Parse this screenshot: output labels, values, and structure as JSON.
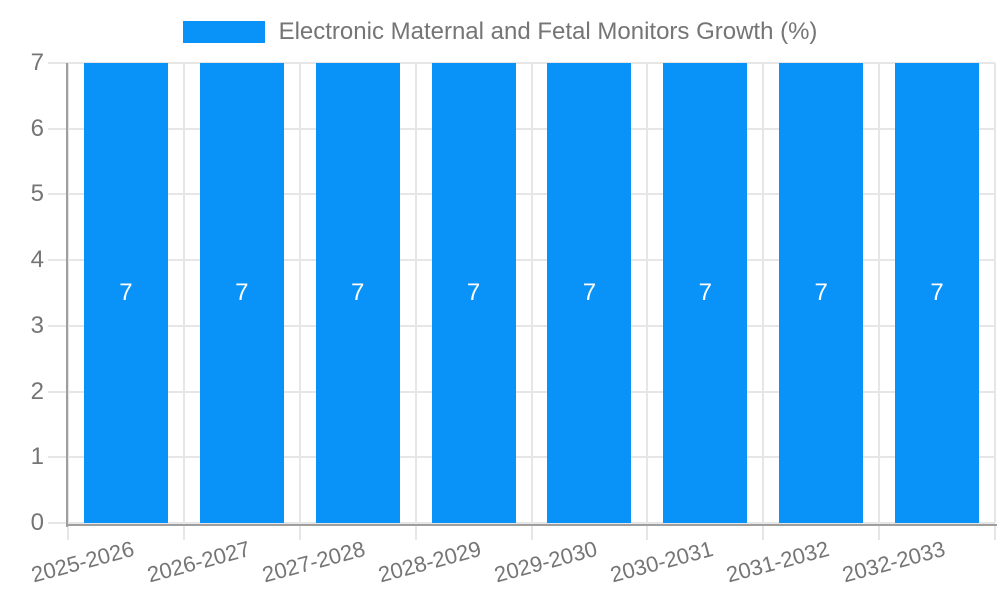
{
  "chart_data": {
    "type": "bar",
    "title": "Electronic Maternal and Fetal Monitors Growth (%)",
    "categories": [
      "2025-2026",
      "2026-2027",
      "2027-2028",
      "2028-2029",
      "2029-2030",
      "2030-2031",
      "2031-2032",
      "2032-2033"
    ],
    "values": [
      7,
      7,
      7,
      7,
      7,
      7,
      7,
      7
    ],
    "bar_labels": [
      "7",
      "7",
      "7",
      "7",
      "7",
      "7",
      "7",
      "7"
    ],
    "xlabel": "",
    "ylabel": "",
    "ylim": [
      0,
      7
    ],
    "yticks": [
      0,
      1,
      2,
      3,
      4,
      5,
      6,
      7
    ],
    "grid": true,
    "legend_position": "top-center",
    "x_label_rotation_deg": -15,
    "colors": {
      "bar": "#0992F7",
      "grid": "#E6E6E6",
      "axis": "#9E9E9E",
      "text": "#757575",
      "bar_label": "#FFFFFF",
      "background": "#FFFFFF"
    }
  }
}
